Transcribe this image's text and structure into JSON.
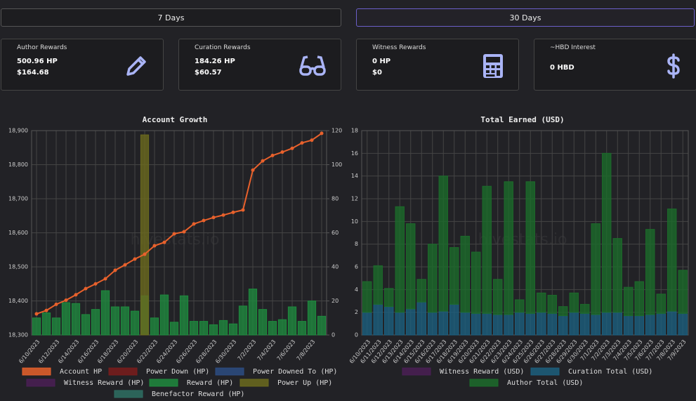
{
  "buttons": [
    "7 Days",
    "30 Days"
  ],
  "cards": [
    {
      "title": "Author Rewards",
      "lines": [
        "500.96 HP",
        "$164.68"
      ]
    },
    {
      "title": "Curation Rewards",
      "lines": [
        "184.26 HP",
        "$60.57"
      ]
    },
    {
      "title": "Witness Rewards",
      "lines": [
        "0 HP",
        "$0"
      ]
    },
    {
      "title": "~HBD Interest",
      "lines": [
        "0 HBD"
      ]
    }
  ],
  "chart_data": [
    {
      "type": "bar",
      "title": "Account Growth",
      "watermark": "hivestats.io",
      "categories": [
        "6/10/2023",
        null,
        "6/12/2023",
        null,
        "6/14/2023",
        null,
        "6/16/2023",
        null,
        "6/18/2023",
        null,
        "6/20/2023",
        null,
        "6/22/2023",
        null,
        "6/24/2023",
        null,
        "6/26/2023",
        null,
        "6/28/2023",
        null,
        "6/30/2023",
        null,
        "7/2/2023",
        null,
        "7/4/2023",
        null,
        "7/6/2023",
        null,
        "7/8/2023",
        null
      ],
      "ylim": [
        18300,
        18900
      ],
      "yticks": [
        {
          "value": 18300,
          "label": "18,300"
        },
        {
          "value": 18400,
          "label": "18,400"
        },
        {
          "value": 18500,
          "label": "18,500"
        },
        {
          "value": 18600,
          "label": "18,600"
        },
        {
          "value": 18700,
          "label": "18,700"
        },
        {
          "value": 18800,
          "label": "18,800"
        },
        {
          "value": 18900,
          "label": "18,900"
        }
      ],
      "y2lim": [
        0,
        120
      ],
      "y2ticks": [
        0,
        20,
        40,
        60,
        80,
        100,
        120
      ],
      "grid": true,
      "series": [
        {
          "name": "Account HP",
          "type": "line",
          "color": "#e8612c",
          "values": [
            18362,
            18372,
            18390,
            18402,
            18418,
            18436,
            18450,
            18465,
            18490,
            18506,
            18523,
            18537,
            18562,
            18572,
            18597,
            18603,
            18626,
            18636,
            18645,
            18652,
            18660,
            18667,
            18784,
            18811,
            18827,
            18837,
            18848,
            18864,
            18872,
            18892
          ]
        },
        {
          "name": "Power Down (HP)",
          "axis": "y2",
          "color": "#7a1c1c",
          "values": [
            0,
            0,
            0,
            0,
            0,
            0,
            0,
            0,
            0,
            0,
            0,
            0,
            0,
            0,
            0,
            0,
            0,
            0,
            0,
            0,
            0,
            0,
            0,
            0,
            0,
            0,
            0,
            0,
            0,
            0
          ]
        },
        {
          "name": "Power Downed To (HP)",
          "axis": "y2",
          "color": "#2c4c82",
          "values": [
            0,
            0,
            0,
            0,
            0,
            0,
            0,
            0,
            0,
            0,
            0,
            0,
            0,
            0,
            0,
            0,
            0,
            0,
            0,
            0,
            0,
            0,
            0,
            0,
            0,
            0,
            0,
            0,
            0,
            0
          ]
        },
        {
          "name": "Witness Reward (HP)",
          "axis": "y2",
          "color": "#4a1f55",
          "values": [
            0,
            0,
            0,
            0,
            0,
            0,
            0,
            0,
            0,
            0,
            0,
            0,
            0,
            0,
            0,
            0,
            0,
            0,
            0,
            0,
            0,
            0,
            0,
            0,
            0,
            0,
            0,
            0,
            0,
            0
          ]
        },
        {
          "name": "Reward (HP)",
          "axis": "y2",
          "color": "#1f8a3e",
          "values": [
            10,
            13,
            10,
            19,
            18.5,
            12,
            15,
            26,
            16.5,
            16.5,
            14,
            23,
            10,
            23.5,
            7.5,
            23,
            8,
            8,
            6,
            8.5,
            6.5,
            17,
            27,
            15,
            8,
            9,
            16.5,
            8,
            20,
            11
          ]
        },
        {
          "name": "Power Up (HP)",
          "axis": "y2",
          "color": "#6b6a1e",
          "values": [
            0,
            0,
            0,
            0,
            0,
            0,
            0,
            0,
            0,
            0,
            0,
            117.5,
            0,
            0,
            0,
            0,
            0,
            0,
            0,
            0,
            0,
            0,
            0,
            0,
            0,
            0,
            0,
            0,
            0,
            0
          ]
        },
        {
          "name": "Benefactor Reward (HP)",
          "axis": "y2",
          "color": "#2e6e63",
          "values": [
            0,
            0,
            0,
            0,
            0,
            0,
            0,
            0,
            0,
            0,
            0,
            0,
            0,
            0,
            0,
            0,
            0,
            0,
            0,
            0,
            0,
            0,
            0,
            0,
            0,
            0,
            0,
            0,
            0,
            0
          ]
        }
      ]
    },
    {
      "type": "bar",
      "stacked": true,
      "title": "Total Earned (USD)",
      "watermark": "hivestats.io",
      "categories": [
        "6/10/2023",
        "6/11/2023",
        "6/12/2023",
        "6/13/2023",
        "6/14/2023",
        "6/15/2023",
        "6/16/2023",
        "6/17/2023",
        "6/18/2023",
        "6/19/2023",
        "6/20/2023",
        "6/21/2023",
        "6/22/2023",
        "6/23/2023",
        "6/24/2023",
        "6/25/2023",
        "6/26/2023",
        "6/27/2023",
        "6/28/2023",
        "6/29/2023",
        "6/30/2023",
        "7/1/2023",
        "7/2/2023",
        "7/3/2023",
        "7/4/2023",
        "7/5/2023",
        "7/6/2023",
        "7/7/2023",
        "7/8/2023",
        "7/9/2023"
      ],
      "ylim": [
        0,
        18
      ],
      "yticks": [
        0,
        2,
        4,
        6,
        8,
        10,
        12,
        14,
        16,
        18
      ],
      "grid": true,
      "series": [
        {
          "name": "Witness Reward (USD)",
          "color": "#4a1f55",
          "values": [
            0,
            0,
            0,
            0,
            0,
            0,
            0,
            0,
            0,
            0,
            0,
            0,
            0,
            0,
            0,
            0,
            0,
            0,
            0,
            0,
            0,
            0,
            0,
            0,
            0,
            0,
            0,
            0,
            0,
            0
          ]
        },
        {
          "name": "Curation Total (USD)",
          "color": "#1c5f7e",
          "values": [
            2.0,
            2.7,
            2.5,
            2.0,
            2.3,
            2.9,
            2.0,
            2.1,
            2.7,
            2.0,
            1.9,
            1.9,
            1.8,
            1.8,
            2.0,
            1.9,
            2.0,
            1.9,
            1.7,
            2.0,
            1.9,
            1.8,
            2.0,
            2.0,
            1.7,
            1.7,
            1.8,
            1.9,
            2.1,
            1.9
          ]
        },
        {
          "name": "Author Total (USD)",
          "color": "#1c6b2b",
          "values": [
            2.7,
            3.4,
            1.6,
            9.3,
            7.5,
            2.0,
            6.0,
            11.9,
            5.0,
            6.7,
            5.4,
            11.2,
            3.1,
            11.7,
            1.1,
            11.6,
            1.7,
            1.6,
            0.8,
            1.7,
            0.8,
            8.0,
            14.0,
            6.5,
            2.5,
            3.0,
            7.5,
            1.7,
            9.0,
            3.8
          ]
        }
      ]
    }
  ]
}
